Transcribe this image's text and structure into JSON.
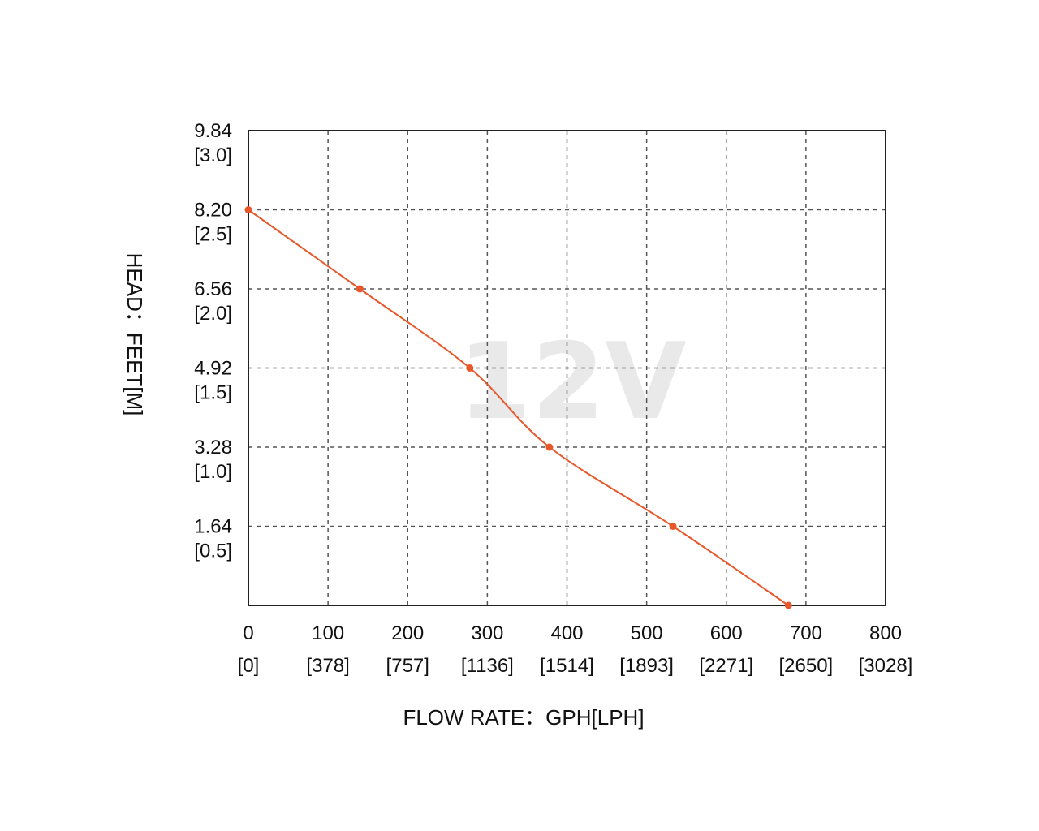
{
  "chart_data": {
    "type": "line",
    "title": "",
    "watermark": "12V",
    "xlabel": "FLOW RATE：GPH[LPH]",
    "ylabel": "HEAD：FEET[M]",
    "xlim": [
      0,
      800
    ],
    "ylim": [
      0,
      9.84
    ],
    "x_ticks": [
      {
        "value": 0,
        "label": "0",
        "sublabel": "[0]"
      },
      {
        "value": 100,
        "label": "100",
        "sublabel": "[378]"
      },
      {
        "value": 200,
        "label": "200",
        "sublabel": "[757]"
      },
      {
        "value": 300,
        "label": "300",
        "sublabel": "[1136]"
      },
      {
        "value": 400,
        "label": "400",
        "sublabel": "[1514]"
      },
      {
        "value": 500,
        "label": "500",
        "sublabel": "[1893]"
      },
      {
        "value": 600,
        "label": "600",
        "sublabel": "[2271]"
      },
      {
        "value": 700,
        "label": "700",
        "sublabel": "[2650]"
      },
      {
        "value": 800,
        "label": "800",
        "sublabel": "[3028]"
      }
    ],
    "y_ticks": [
      {
        "value": 1.64,
        "label": "1.64",
        "sublabel": "[0.5]"
      },
      {
        "value": 3.28,
        "label": "3.28",
        "sublabel": "[1.0]"
      },
      {
        "value": 4.92,
        "label": "4.92",
        "sublabel": "[1.5]"
      },
      {
        "value": 6.56,
        "label": "6.56",
        "sublabel": "[2.0]"
      },
      {
        "value": 8.2,
        "label": "8.20",
        "sublabel": "[2.5]"
      },
      {
        "value": 9.84,
        "label": "9.84",
        "sublabel": "[3.0]"
      }
    ],
    "grid": true,
    "grid_style": "dashed",
    "series": [
      {
        "color": "#e8572a",
        "points": [
          {
            "x": 0,
            "y": 8.2
          },
          {
            "x": 140,
            "y": 6.56
          },
          {
            "x": 278,
            "y": 4.92
          },
          {
            "x": 378,
            "y": 3.28
          },
          {
            "x": 533,
            "y": 1.64
          },
          {
            "x": 678,
            "y": 0
          }
        ]
      }
    ]
  }
}
